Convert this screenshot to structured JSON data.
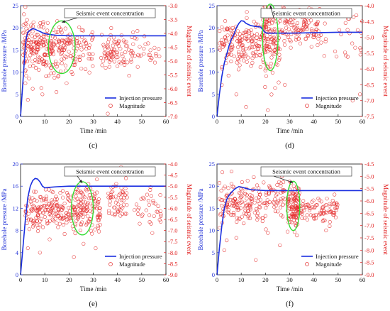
{
  "chart_data": [
    {
      "type": "line+scatter",
      "panel_label": "(c)",
      "xlabel": "Time /min",
      "ylabel_left": "Borehole pressure /MPa",
      "ylabel_right": "Magnitude of seismic event",
      "xlim": [
        0,
        60
      ],
      "ylim_left": [
        0,
        25
      ],
      "ylim_right": [
        -7.0,
        -3.0
      ],
      "x_ticks": [
        "0",
        "10",
        "20",
        "30",
        "40",
        "50",
        "60"
      ],
      "y_left_ticks": [
        "0",
        "5",
        "10",
        "15",
        "20",
        "25"
      ],
      "y_right_ticks": [
        "-3.0",
        "-3.5",
        "-4.0",
        "-4.5",
        "-5.0",
        "-5.5",
        "-6.0",
        "-6.5",
        "-7.0"
      ],
      "annotation": "Seismic event concentration",
      "legend": {
        "line": "Injection pressure",
        "scatter": "Magnitude",
        "position": "bottom-right"
      },
      "pressure_series": {
        "name": "Injection pressure",
        "x": [
          0,
          0.5,
          1,
          1.5,
          2,
          2.5,
          3,
          4,
          5,
          6,
          7,
          8,
          9,
          10,
          12,
          15,
          20,
          30,
          40,
          50,
          60
        ],
        "y": [
          0,
          4,
          8,
          12,
          16,
          18,
          19,
          19.5,
          19.8,
          19.7,
          19.4,
          19.2,
          18.9,
          18.7,
          18.5,
          18.3,
          18.2,
          18.2,
          18.2,
          18.2,
          18.2
        ]
      },
      "scatter_clusters": [
        {
          "x_range": [
            1,
            10
          ],
          "m_center": -4.4,
          "m_spread": 0.45,
          "n": 130
        },
        {
          "x_range": [
            10,
            22
          ],
          "m_center": -4.6,
          "m_spread": 0.45,
          "n": 120
        },
        {
          "x_range": [
            22,
            30
          ],
          "m_center": -4.5,
          "m_spread": 0.4,
          "n": 45
        },
        {
          "x_range": [
            33,
            46
          ],
          "m_center": -4.7,
          "m_spread": 0.3,
          "n": 80
        },
        {
          "x_range": [
            46,
            58
          ],
          "m_center": -4.6,
          "m_spread": 0.3,
          "n": 30
        }
      ],
      "scatter_outliers": [
        [
          2,
          -5.8
        ],
        [
          5,
          -6.0
        ],
        [
          9,
          -6.2
        ],
        [
          3,
          -6.4
        ],
        [
          36,
          -6.9
        ],
        [
          14,
          -5.6
        ],
        [
          19,
          -5.8
        ]
      ],
      "ellipse": {
        "cx": 17,
        "cy_mag": -4.5,
        "rx_units": 5.5,
        "ry_mag": 0.95
      }
    },
    {
      "type": "line+scatter",
      "panel_label": "(d)",
      "xlabel": "Time /min",
      "ylabel_left": "Borehole pressure /MPa",
      "ylabel_right": "Magnitude of seismic event",
      "xlim": [
        0,
        60
      ],
      "ylim_left": [
        0,
        25
      ],
      "ylim_right": [
        -7.5,
        -4.0
      ],
      "x_ticks": [
        "0",
        "10",
        "20",
        "30",
        "40",
        "50",
        "60"
      ],
      "y_left_ticks": [
        "0",
        "5",
        "10",
        "15",
        "20",
        "25"
      ],
      "y_right_ticks": [
        "-4.0",
        "-4.5",
        "-5.0",
        "-5.5",
        "-6.0",
        "-6.5",
        "-7.0",
        "-7.5"
      ],
      "annotation": "Seismic event concentration",
      "legend": {
        "line": "Injection pressure",
        "scatter": "Magnitude",
        "position": "bottom-right"
      },
      "pressure_series": {
        "name": "Injection pressure",
        "x": [
          0,
          1,
          2,
          3,
          4,
          5,
          6,
          7,
          8,
          9,
          10,
          11,
          12,
          14,
          16,
          18,
          19,
          20,
          21,
          22,
          25,
          30,
          40,
          50,
          60
        ],
        "y": [
          0,
          5,
          9,
          12,
          14,
          16,
          17.5,
          18.5,
          20,
          21,
          21.6,
          21.5,
          21,
          20.5,
          20.3,
          20.2,
          19.5,
          18.9,
          18.8,
          18.8,
          18.8,
          18.8,
          18.9,
          19.0,
          19.0
        ]
      },
      "scatter_clusters": [
        {
          "x_range": [
            1,
            20
          ],
          "m_center": -5.15,
          "m_spread": 0.4,
          "n": 170
        },
        {
          "x_range": [
            19,
            26
          ],
          "m_center": -5.0,
          "m_spread": 0.55,
          "n": 110
        },
        {
          "x_range": [
            26,
            42
          ],
          "m_center": -4.7,
          "m_spread": 0.3,
          "n": 110
        },
        {
          "x_range": [
            42,
            60
          ],
          "m_center": -5.0,
          "m_spread": 0.45,
          "n": 30
        }
      ],
      "scatter_outliers": [
        [
          12,
          -7.2
        ],
        [
          21,
          -7.3
        ],
        [
          8,
          -6.8
        ],
        [
          24,
          -6.6
        ],
        [
          2,
          -6.5
        ],
        [
          56,
          -7.0
        ],
        [
          59,
          -6.8
        ],
        [
          28,
          -6.5
        ]
      ],
      "ellipse": {
        "cx": 22,
        "cy_mag": -5.0,
        "rx_units": 3.2,
        "ry_mag": 1.05
      }
    },
    {
      "type": "line+scatter",
      "panel_label": "(e)",
      "xlabel": "Time /min",
      "ylabel_left": "Borehole pressure /MPa",
      "ylabel_right": "Magnitude of seismic event",
      "xlim": [
        0,
        60
      ],
      "ylim_left": [
        0,
        20
      ],
      "ylim_right": [
        -9.0,
        -4.0
      ],
      "x_ticks": [
        "0",
        "10",
        "20",
        "30",
        "40",
        "50",
        "60"
      ],
      "y_left_ticks": [
        "0",
        "4",
        "8",
        "12",
        "16",
        "20"
      ],
      "y_right_ticks": [
        "-4.0",
        "-4.5",
        "-5.0",
        "-5.5",
        "-6.0",
        "-6.5",
        "-7.0",
        "-7.5",
        "-8.0",
        "-8.5",
        "-9.0"
      ],
      "annotation": "Seismic event concentration",
      "legend": {
        "line": "Injection pressure",
        "scatter": "Magnitude",
        "position": "bottom-right"
      },
      "pressure_series": {
        "name": "Injection pressure",
        "x": [
          0,
          1,
          2,
          3,
          4,
          5,
          6,
          7,
          8,
          9,
          10,
          12,
          15,
          20,
          30,
          40,
          50,
          60
        ],
        "y": [
          0,
          5,
          10,
          14,
          16,
          17,
          17.4,
          17.3,
          16.8,
          16,
          15.7,
          15.8,
          15.9,
          16,
          16,
          16,
          16,
          16
        ]
      },
      "scatter_clusters": [
        {
          "x_range": [
            2,
            19
          ],
          "m_center": -6.1,
          "m_spread": 0.45,
          "n": 150
        },
        {
          "x_range": [
            19,
            33
          ],
          "m_center": -6.0,
          "m_spread": 0.5,
          "n": 150
        },
        {
          "x_range": [
            36,
            44
          ],
          "m_center": -5.7,
          "m_spread": 0.45,
          "n": 55
        },
        {
          "x_range": [
            47,
            58
          ],
          "m_center": -5.9,
          "m_spread": 0.45,
          "n": 35
        }
      ],
      "scatter_outliers": [
        [
          3,
          -7.8
        ],
        [
          8,
          -8.0
        ],
        [
          12,
          -7.4
        ],
        [
          22,
          -8.2
        ],
        [
          26,
          -7.6
        ],
        [
          31,
          -7.8
        ],
        [
          24,
          -5.0
        ],
        [
          28,
          -4.9
        ]
      ],
      "ellipse": {
        "cx": 25.5,
        "cy_mag": -6.0,
        "rx_units": 4.5,
        "ry_mag": 1.2
      }
    },
    {
      "type": "line+scatter",
      "panel_label": "(f)",
      "xlabel": "Time /min",
      "ylabel_left": "Borehole pressure /MPa",
      "ylabel_right": "Magnitude of seismic event",
      "xlim": [
        0,
        60
      ],
      "ylim_left": [
        0,
        25
      ],
      "ylim_right": [
        -9.0,
        -4.5
      ],
      "x_ticks": [
        "0",
        "10",
        "20",
        "30",
        "40",
        "50",
        "60"
      ],
      "y_left_ticks": [
        "0",
        "5",
        "10",
        "15",
        "20",
        "25"
      ],
      "y_right_ticks": [
        "-4.5",
        "-5.0",
        "-5.5",
        "-6.0",
        "-6.5",
        "-7.0",
        "-7.5",
        "-8.0",
        "-8.5",
        "-9.0"
      ],
      "annotation": "Seismic event concentration",
      "legend": {
        "line": "Injection pressure",
        "scatter": "Magnitude",
        "position": "bottom-right"
      },
      "pressure_series": {
        "name": "Injection pressure",
        "x": [
          0,
          1,
          2,
          3,
          4,
          5,
          6,
          7,
          8,
          9,
          10,
          12,
          14,
          17,
          20,
          30,
          40,
          50,
          60
        ],
        "y": [
          0,
          6,
          11,
          15,
          17,
          18,
          18.6,
          19.2,
          19.6,
          19.9,
          19.8,
          19.5,
          19.2,
          19.1,
          19.0,
          19.0,
          19.0,
          19.0,
          19.0
        ]
      },
      "scatter_clusters": [
        {
          "x_range": [
            1,
            28
          ],
          "m_center": -6.0,
          "m_spread": 0.45,
          "n": 200
        },
        {
          "x_range": [
            29,
            34
          ],
          "m_center": -6.2,
          "m_spread": 0.45,
          "n": 110
        },
        {
          "x_range": [
            34,
            50
          ],
          "m_center": -6.3,
          "m_spread": 0.3,
          "n": 90
        }
      ],
      "scatter_outliers": [
        [
          4,
          -7.6
        ],
        [
          3,
          -8.0
        ],
        [
          8,
          -7.5
        ],
        [
          21,
          -7.3
        ],
        [
          16,
          -8.4
        ],
        [
          26,
          -7.8
        ],
        [
          33,
          -7.4
        ],
        [
          45,
          -7.2
        ],
        [
          6,
          -4.8
        ]
      ],
      "ellipse": {
        "cx": 31.5,
        "cy_mag": -6.2,
        "rx_units": 2.7,
        "ry_mag": 1.0
      }
    }
  ]
}
